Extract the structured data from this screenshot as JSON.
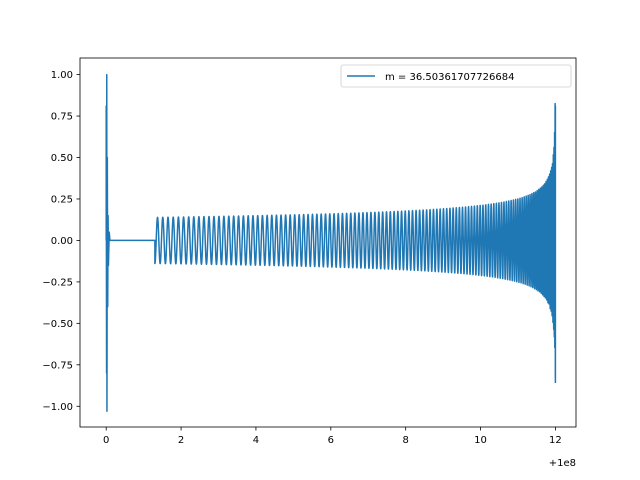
{
  "chart_data": {
    "type": "line",
    "title": "",
    "xlabel": "",
    "ylabel": "",
    "x_offset_label": "+1e8",
    "xlim": [
      -0.7,
      12.55
    ],
    "ylim": [
      -1.125,
      1.1
    ],
    "xticks": [
      0,
      2,
      4,
      6,
      8,
      10,
      12
    ],
    "xtick_labels": [
      "0",
      "2",
      "4",
      "6",
      "8",
      "10",
      "12"
    ],
    "yticks": [
      -1.0,
      -0.75,
      -0.5,
      -0.25,
      0.0,
      0.25,
      0.5,
      0.75,
      1.0
    ],
    "ytick_labels": [
      "−1.00",
      "−0.75",
      "−0.50",
      "−0.25",
      "0.00",
      "0.25",
      "0.50",
      "0.75",
      "1.00"
    ],
    "grid": false,
    "legend": {
      "position": "top-right"
    },
    "series": [
      {
        "name": "m = 36.50361707726684",
        "color": "#1f77b4",
        "description_points": {
          "x": [
            0,
            0.05,
            0.1,
            1.3,
            1.31,
            4,
            6,
            8,
            10,
            11,
            11.5,
            11.8,
            11.95,
            12.0
          ],
          "y_envelope": [
            1.0,
            0.15,
            0.0,
            0.0,
            0.17,
            0.175,
            0.19,
            0.22,
            0.28,
            0.33,
            0.38,
            0.45,
            0.62,
            0.81
          ],
          "y_min": [
            -1.03,
            -0.15,
            0.0,
            0.0,
            -0.13,
            -0.17,
            -0.19,
            -0.22,
            -0.28,
            -0.33,
            -0.38,
            -0.47,
            -0.65,
            -0.86
          ]
        }
      }
    ]
  }
}
